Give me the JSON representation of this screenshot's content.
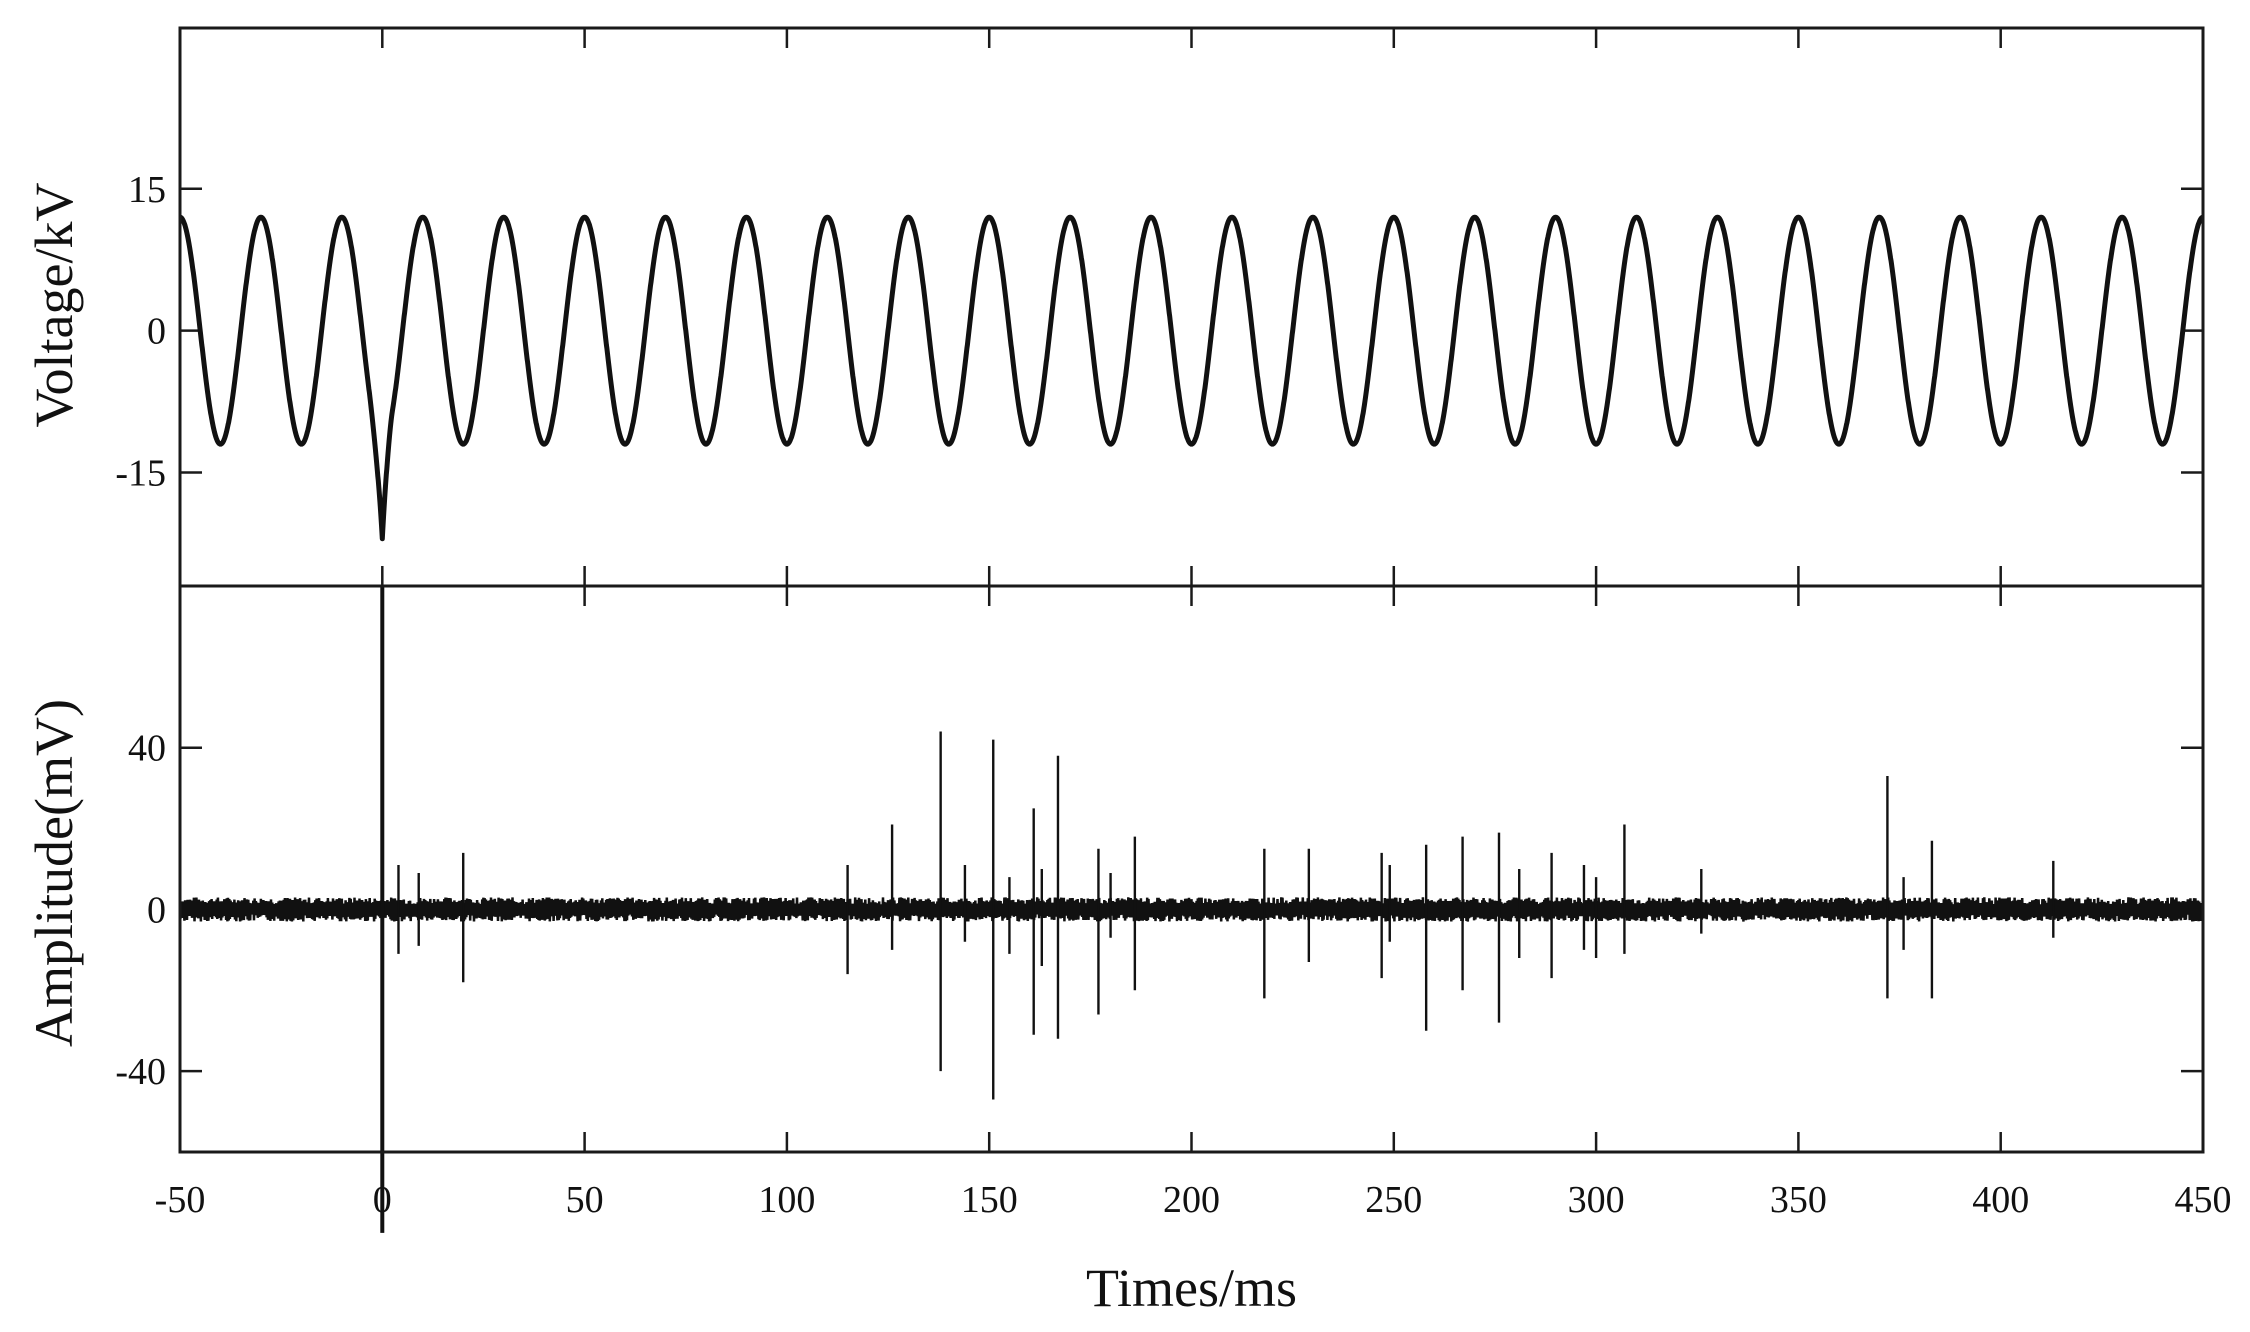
{
  "chart_data": [
    {
      "type": "line",
      "panel": "top",
      "ylabel": "Voltage/kV",
      "xlim": [
        -50,
        450
      ],
      "ylim": [
        -27,
        32
      ],
      "yticks": [
        15,
        0,
        -15
      ],
      "ytick_labels": [
        "15",
        "0",
        "-15"
      ],
      "series": [
        {
          "kind": "sinusoid",
          "amplitude_kV": 12,
          "period_ms": 20,
          "phase_at_minus50_deg": 90,
          "transient": {
            "x": 0,
            "min_y": -22
          }
        }
      ],
      "color": "#111111"
    },
    {
      "type": "line",
      "panel": "bottom",
      "xlabel": "Times/ms",
      "ylabel": "Amplitude(mV)",
      "xlim": [
        -50,
        450
      ],
      "ylim": [
        -60,
        80
      ],
      "yticks": [
        40,
        0,
        -40
      ],
      "ytick_labels": [
        "40",
        "0",
        "-40"
      ],
      "xticks": [
        -50,
        0,
        50,
        100,
        150,
        200,
        250,
        300,
        350,
        400,
        450
      ],
      "xtick_labels": [
        "-50",
        "0",
        "50",
        "100",
        "150",
        "200",
        "250",
        "300",
        "350",
        "400",
        "450"
      ],
      "baseline_noise_mV": 3,
      "spikes": [
        {
          "x": 0,
          "up": 80,
          "down": -80
        },
        {
          "x": 4,
          "up": 11,
          "down": -11
        },
        {
          "x": 9,
          "up": 9,
          "down": -9
        },
        {
          "x": 20,
          "up": 14,
          "down": -18
        },
        {
          "x": 115,
          "up": 11,
          "down": -16
        },
        {
          "x": 126,
          "up": 21,
          "down": -10
        },
        {
          "x": 138,
          "up": 44,
          "down": -40
        },
        {
          "x": 144,
          "up": 11,
          "down": -8
        },
        {
          "x": 151,
          "up": 42,
          "down": -47
        },
        {
          "x": 155,
          "up": 8,
          "down": -11
        },
        {
          "x": 161,
          "up": 25,
          "down": -31
        },
        {
          "x": 163,
          "up": 10,
          "down": -14
        },
        {
          "x": 167,
          "up": 38,
          "down": -32
        },
        {
          "x": 177,
          "up": 15,
          "down": -26
        },
        {
          "x": 180,
          "up": 9,
          "down": -7
        },
        {
          "x": 186,
          "up": 18,
          "down": -20
        },
        {
          "x": 218,
          "up": 15,
          "down": -22
        },
        {
          "x": 229,
          "up": 15,
          "down": -13
        },
        {
          "x": 247,
          "up": 14,
          "down": -17
        },
        {
          "x": 249,
          "up": 11,
          "down": -8
        },
        {
          "x": 258,
          "up": 16,
          "down": -30
        },
        {
          "x": 267,
          "up": 18,
          "down": -20
        },
        {
          "x": 276,
          "up": 19,
          "down": -28
        },
        {
          "x": 281,
          "up": 10,
          "down": -12
        },
        {
          "x": 289,
          "up": 14,
          "down": -17
        },
        {
          "x": 297,
          "up": 11,
          "down": -10
        },
        {
          "x": 300,
          "up": 8,
          "down": -12
        },
        {
          "x": 307,
          "up": 21,
          "down": -11
        },
        {
          "x": 326,
          "up": 10,
          "down": -6
        },
        {
          "x": 372,
          "up": 33,
          "down": -22
        },
        {
          "x": 376,
          "up": 8,
          "down": -10
        },
        {
          "x": 383,
          "up": 17,
          "down": -22
        },
        {
          "x": 413,
          "up": 12,
          "down": -7
        }
      ],
      "color": "#111111"
    }
  ]
}
